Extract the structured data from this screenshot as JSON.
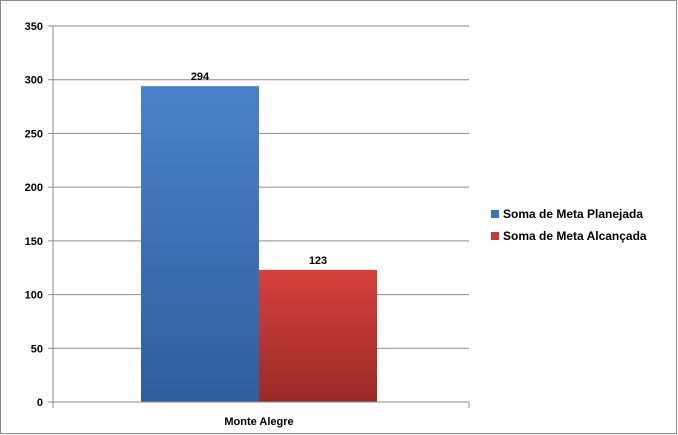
{
  "chart_data": {
    "type": "bar",
    "categories": [
      "Monte Alegre"
    ],
    "series": [
      {
        "name": "Soma de Meta Planejada",
        "values": [
          294
        ],
        "color": "#3d74bd"
      },
      {
        "name": "Soma de Meta Alcançada",
        "values": [
          123
        ],
        "color": "#c93a37"
      }
    ],
    "ylim": [
      0,
      350
    ],
    "yticks": [
      0,
      50,
      100,
      150,
      200,
      250,
      300,
      350
    ],
    "grid": true,
    "legend_position": "right"
  }
}
